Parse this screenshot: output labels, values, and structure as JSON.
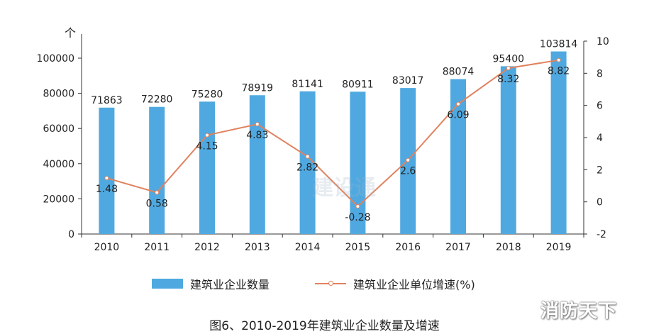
{
  "chart_data": {
    "type": "bar",
    "categories": [
      "2010",
      "2011",
      "2012",
      "2013",
      "2014",
      "2015",
      "2016",
      "2017",
      "2018",
      "2019"
    ],
    "series": [
      {
        "name": "建筑业企业数量",
        "type": "bar",
        "axis": "left",
        "values": [
          71863,
          72280,
          75280,
          78919,
          81141,
          80911,
          83017,
          88074,
          95400,
          103814
        ],
        "color": "#4fa9e0"
      },
      {
        "name": "建筑业企业单位增速(%)",
        "type": "line",
        "axis": "right",
        "values": [
          1.48,
          0.58,
          4.15,
          4.83,
          2.82,
          -0.28,
          2.6,
          6.09,
          8.32,
          8.82
        ],
        "color": "#e0825f"
      }
    ],
    "y_left": {
      "unit": "个",
      "min": 0,
      "max": 100000,
      "ticks": [
        "0",
        "20000",
        "40000",
        "60000",
        "80000",
        "100000"
      ]
    },
    "y_right": {
      "min": -2,
      "max": 10,
      "ticks": [
        "-2",
        "0",
        "2",
        "4",
        "6",
        "8",
        "10"
      ]
    },
    "grid": false,
    "legend_position": "bottom"
  },
  "caption": "图6、2010-2019年建筑业企业数量及增速",
  "watermark": "消防天下",
  "faint_watermark": "建设通"
}
